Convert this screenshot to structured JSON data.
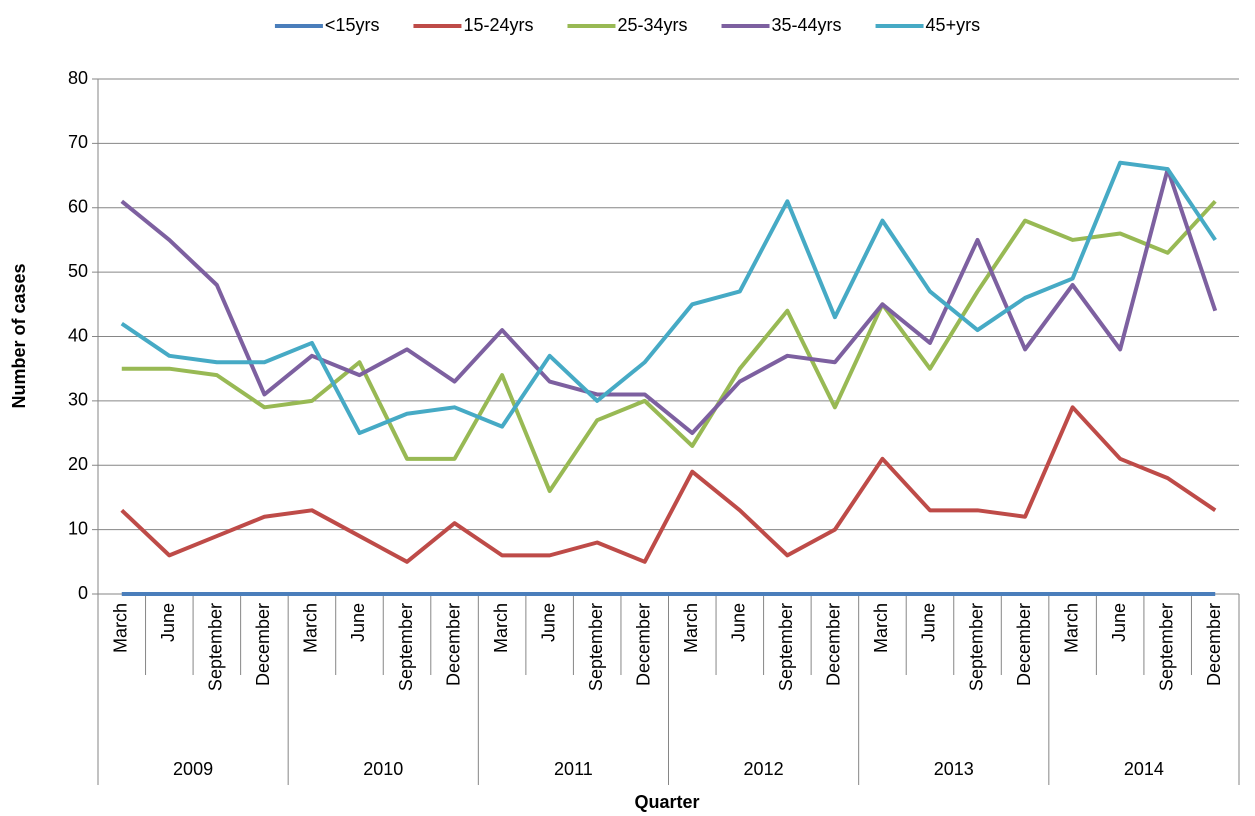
{
  "chart_data": {
    "type": "line",
    "x_label": "Quarter",
    "y_label": "Number of cases",
    "categories": [
      "March",
      "June",
      "September",
      "December",
      "March",
      "June",
      "September",
      "December",
      "March",
      "June",
      "September",
      "December",
      "March",
      "June",
      "September",
      "December",
      "March",
      "June",
      "September",
      "December",
      "March",
      "June",
      "September",
      "December"
    ],
    "category_groups": [
      "2009",
      "2010",
      "2011",
      "2012",
      "2013",
      "2014"
    ],
    "ylim": [
      0,
      80
    ],
    "yticks": [
      0,
      10,
      20,
      30,
      40,
      50,
      60,
      70,
      80
    ],
    "grid": true,
    "legend": "top",
    "series": [
      {
        "name": "<15yrs",
        "color": "#4a7ebb",
        "values": [
          0,
          0,
          0,
          0,
          0,
          0,
          0,
          0,
          0,
          0,
          0,
          0,
          0,
          0,
          0,
          0,
          0,
          0,
          0,
          0,
          0,
          0,
          0,
          0
        ]
      },
      {
        "name": "15-24yrs",
        "color": "#be4b48",
        "values": [
          13,
          6,
          9,
          12,
          13,
          9,
          5,
          11,
          6,
          6,
          8,
          5,
          19,
          13,
          6,
          10,
          21,
          13,
          13,
          12,
          29,
          21,
          18,
          13
        ]
      },
      {
        "name": "25-34yrs",
        "color": "#98b954",
        "values": [
          35,
          35,
          34,
          29,
          30,
          36,
          21,
          21,
          34,
          16,
          27,
          30,
          23,
          35,
          44,
          29,
          45,
          35,
          47,
          58,
          55,
          56,
          53,
          61
        ]
      },
      {
        "name": "35-44yrs",
        "color": "#7d60a0",
        "values": [
          61,
          55,
          48,
          31,
          37,
          34,
          38,
          33,
          41,
          33,
          31,
          31,
          25,
          33,
          37,
          36,
          45,
          39,
          55,
          38,
          48,
          38,
          66,
          44
        ]
      },
      {
        "name": "45+yrs",
        "color": "#46aac5",
        "values": [
          42,
          37,
          36,
          36,
          39,
          25,
          28,
          29,
          26,
          37,
          30,
          36,
          45,
          47,
          61,
          43,
          58,
          47,
          41,
          46,
          49,
          67,
          66,
          55
        ]
      }
    ]
  }
}
